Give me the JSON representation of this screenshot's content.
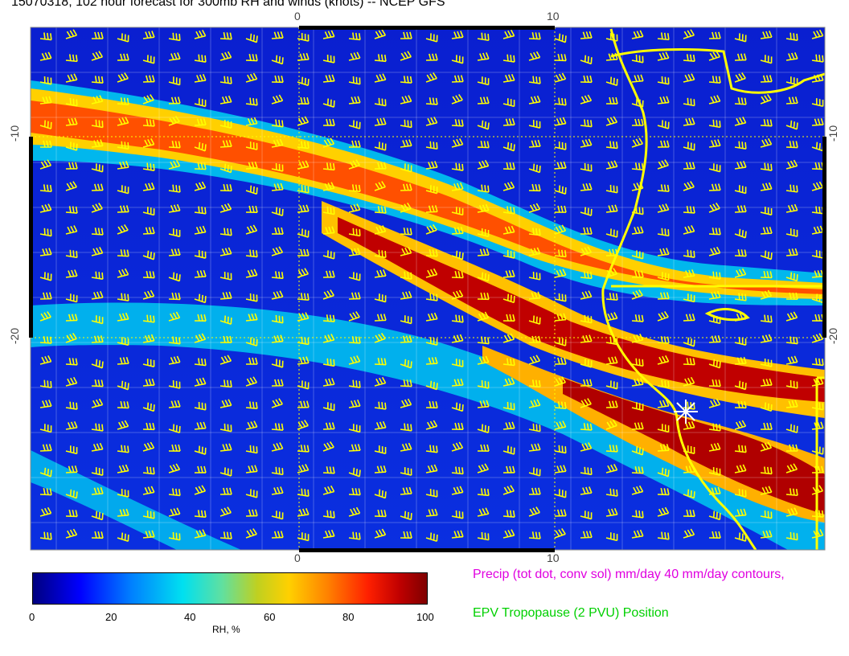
{
  "title": "15070318, 102 hour forecast for 300mb RH and winds (knots) -- NCEP GFS",
  "axes": {
    "x_ticks": [
      "0",
      "10"
    ],
    "y_ticks": [
      "-10",
      "-20"
    ]
  },
  "colorbar": {
    "title": "RH, %",
    "ticks": [
      "0",
      "20",
      "40",
      "60",
      "80",
      "100"
    ],
    "range": [
      0,
      100
    ],
    "colors": [
      "#00007f",
      "#0000ff",
      "#0080ff",
      "#00e0f0",
      "#c0d020",
      "#ffd000",
      "#ff8000",
      "#ff2000",
      "#7f0000"
    ]
  },
  "legend": {
    "precip": "Precip (tot dot, conv sol) mm/day 40 mm/day contours,",
    "epv": "EPV Tropopause (2 PVU) Position"
  },
  "colors": {
    "wind_barbs": "#ffff00",
    "coastline": "#ffff00",
    "grid": "#ffffff",
    "marker": "#ffffff"
  }
}
